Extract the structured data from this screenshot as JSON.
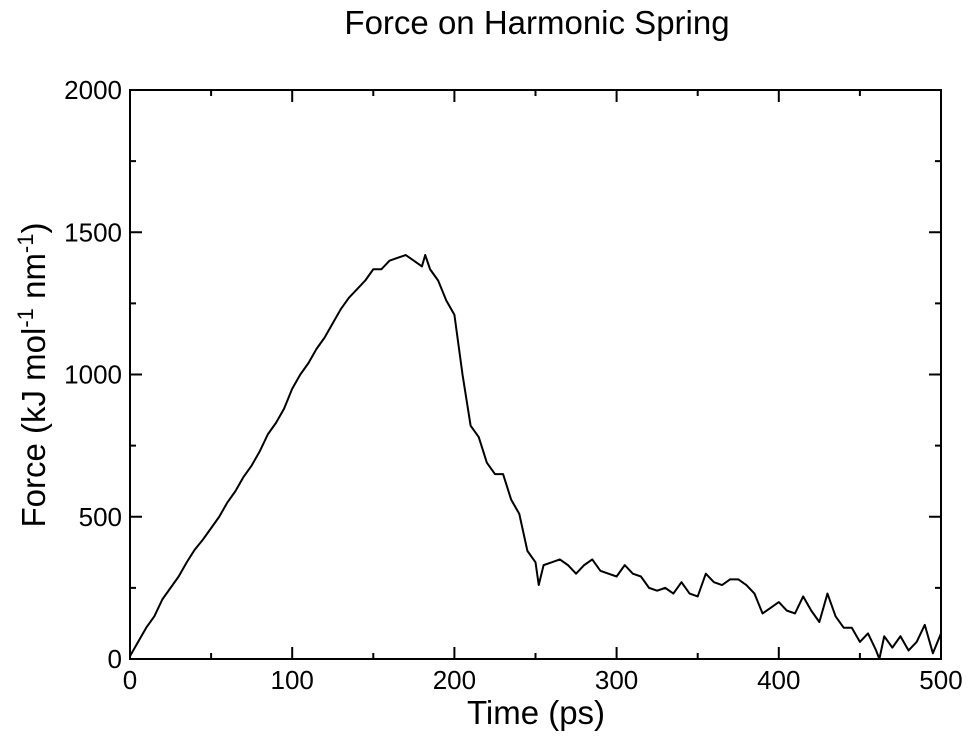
{
  "chart_data": {
    "type": "line",
    "title": "Force on Harmonic Spring",
    "xlabel": "Time (ps)",
    "ylabel": {
      "prefix": "Force (kJ mol",
      "sup1": "-1",
      "middle": " nm",
      "sup2": "-1",
      "suffix": ")"
    },
    "xlim": [
      0,
      500
    ],
    "ylim": [
      0,
      2000
    ],
    "x_ticks": [
      0,
      100,
      200,
      300,
      400,
      500
    ],
    "y_ticks": [
      0,
      500,
      1000,
      1500,
      2000
    ],
    "x_minor_step": 50,
    "y_minor_step": 250,
    "grid": false,
    "line_color": "#000000",
    "series": [
      {
        "x": [
          0,
          5,
          10,
          15,
          20,
          25,
          30,
          35,
          40,
          45,
          50,
          55,
          60,
          65,
          70,
          75,
          80,
          85,
          90,
          95,
          100,
          105,
          110,
          115,
          120,
          125,
          130,
          135,
          140,
          145,
          150,
          155,
          160,
          165,
          170,
          175,
          180,
          182,
          185,
          190,
          195,
          200,
          205,
          210,
          215,
          220,
          225,
          230,
          235,
          240,
          245,
          250,
          252,
          255,
          260,
          265,
          270,
          275,
          280,
          285,
          290,
          295,
          300,
          305,
          310,
          315,
          320,
          325,
          330,
          335,
          340,
          345,
          350,
          355,
          360,
          365,
          370,
          375,
          380,
          385,
          390,
          395,
          400,
          405,
          410,
          415,
          420,
          425,
          430,
          435,
          440,
          445,
          450,
          455,
          460,
          462,
          465,
          470,
          475,
          480,
          485,
          490,
          495,
          500
        ],
        "y": [
          10,
          60,
          110,
          150,
          210,
          250,
          290,
          340,
          385,
          420,
          460,
          500,
          550,
          590,
          640,
          680,
          730,
          790,
          830,
          880,
          950,
          1000,
          1040,
          1090,
          1130,
          1180,
          1230,
          1270,
          1300,
          1330,
          1370,
          1370,
          1400,
          1410,
          1420,
          1400,
          1380,
          1420,
          1370,
          1330,
          1260,
          1210,
          1000,
          820,
          780,
          690,
          650,
          650,
          560,
          510,
          380,
          340,
          260,
          330,
          340,
          350,
          330,
          300,
          330,
          350,
          310,
          300,
          290,
          330,
          300,
          290,
          250,
          240,
          250,
          230,
          270,
          230,
          220,
          300,
          270,
          260,
          280,
          280,
          260,
          230,
          160,
          180,
          200,
          170,
          160,
          220,
          170,
          130,
          230,
          150,
          110,
          110,
          60,
          90,
          30,
          0,
          80,
          40,
          80,
          30,
          60,
          120,
          20,
          90
        ]
      }
    ]
  }
}
